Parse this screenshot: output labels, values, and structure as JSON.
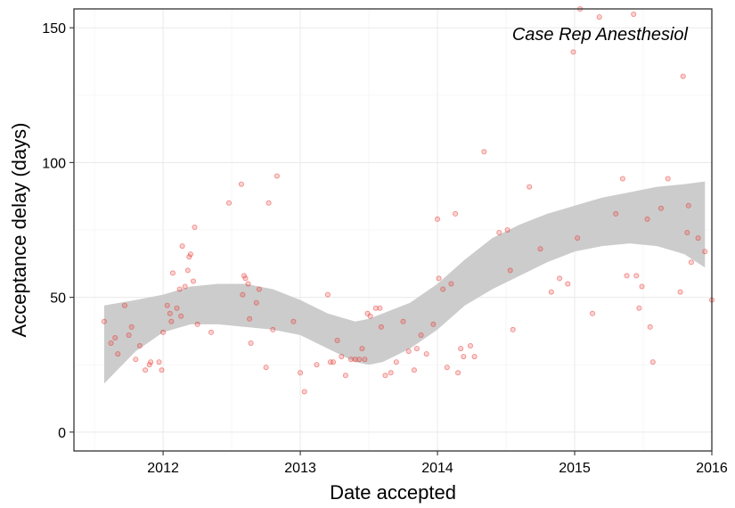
{
  "chart_data": {
    "type": "scatter",
    "title": "",
    "annotation": "Case Rep Anesthesiol",
    "xlabel": "Date accepted",
    "ylabel": "Acceptance delay (days)",
    "x_unit": "year",
    "xlim": [
      2011.35,
      2016.0
    ],
    "ylim": [
      -7,
      157
    ],
    "x_ticks": [
      2012,
      2013,
      2014,
      2015,
      2016
    ],
    "x_tick_labels": [
      "2012",
      "2013",
      "2014",
      "2015",
      "2016"
    ],
    "y_ticks": [
      0,
      50,
      100,
      150
    ],
    "y_tick_labels": [
      "0",
      "50",
      "100",
      "150"
    ],
    "grid": true,
    "point_color": "#e8342d",
    "band_color": "#cccccc",
    "points": [
      [
        2011.57,
        41
      ],
      [
        2011.62,
        33
      ],
      [
        2011.65,
        35
      ],
      [
        2011.67,
        29
      ],
      [
        2011.72,
        47
      ],
      [
        2011.75,
        36
      ],
      [
        2011.77,
        39
      ],
      [
        2011.8,
        27
      ],
      [
        2011.83,
        32
      ],
      [
        2011.87,
        23
      ],
      [
        2011.9,
        25
      ],
      [
        2011.91,
        26
      ],
      [
        2011.97,
        26
      ],
      [
        2011.99,
        23
      ],
      [
        2012.0,
        37
      ],
      [
        2012.03,
        47
      ],
      [
        2012.05,
        44
      ],
      [
        2012.06,
        41
      ],
      [
        2012.07,
        59
      ],
      [
        2012.1,
        46
      ],
      [
        2012.12,
        53
      ],
      [
        2012.13,
        43
      ],
      [
        2012.14,
        69
      ],
      [
        2012.16,
        54
      ],
      [
        2012.18,
        60
      ],
      [
        2012.19,
        65
      ],
      [
        2012.2,
        66
      ],
      [
        2012.22,
        56
      ],
      [
        2012.23,
        76
      ],
      [
        2012.25,
        40
      ],
      [
        2012.35,
        37
      ],
      [
        2012.48,
        85
      ],
      [
        2012.57,
        92
      ],
      [
        2012.58,
        51
      ],
      [
        2012.59,
        58
      ],
      [
        2012.6,
        57
      ],
      [
        2012.62,
        55
      ],
      [
        2012.63,
        42
      ],
      [
        2012.64,
        33
      ],
      [
        2012.68,
        48
      ],
      [
        2012.7,
        53
      ],
      [
        2012.75,
        24
      ],
      [
        2012.77,
        85
      ],
      [
        2012.8,
        38
      ],
      [
        2012.83,
        95
      ],
      [
        2012.95,
        41
      ],
      [
        2013.0,
        22
      ],
      [
        2013.03,
        15
      ],
      [
        2013.12,
        25
      ],
      [
        2013.2,
        51
      ],
      [
        2013.22,
        26
      ],
      [
        2013.24,
        26
      ],
      [
        2013.27,
        34
      ],
      [
        2013.3,
        28
      ],
      [
        2013.33,
        21
      ],
      [
        2013.37,
        27
      ],
      [
        2013.4,
        27
      ],
      [
        2013.43,
        27
      ],
      [
        2013.45,
        31
      ],
      [
        2013.47,
        27
      ],
      [
        2013.49,
        44
      ],
      [
        2013.51,
        43
      ],
      [
        2013.55,
        46
      ],
      [
        2013.58,
        46
      ],
      [
        2013.59,
        39
      ],
      [
        2013.62,
        21
      ],
      [
        2013.66,
        22
      ],
      [
        2013.7,
        26
      ],
      [
        2013.75,
        41
      ],
      [
        2013.79,
        30
      ],
      [
        2013.83,
        23
      ],
      [
        2013.85,
        31
      ],
      [
        2013.88,
        36
      ],
      [
        2013.92,
        29
      ],
      [
        2013.97,
        40
      ],
      [
        2014.0,
        79
      ],
      [
        2014.01,
        57
      ],
      [
        2014.04,
        53
      ],
      [
        2014.07,
        24
      ],
      [
        2014.1,
        55
      ],
      [
        2014.13,
        81
      ],
      [
        2014.15,
        22
      ],
      [
        2014.17,
        31
      ],
      [
        2014.19,
        28
      ],
      [
        2014.24,
        32
      ],
      [
        2014.27,
        28
      ],
      [
        2014.34,
        104
      ],
      [
        2014.45,
        74
      ],
      [
        2014.51,
        75
      ],
      [
        2014.53,
        60
      ],
      [
        2014.55,
        38
      ],
      [
        2014.67,
        91
      ],
      [
        2014.75,
        68
      ],
      [
        2014.83,
        52
      ],
      [
        2014.89,
        57
      ],
      [
        2014.95,
        55
      ],
      [
        2014.99,
        141
      ],
      [
        2015.02,
        72
      ],
      [
        2015.04,
        157
      ],
      [
        2015.13,
        44
      ],
      [
        2015.18,
        154
      ],
      [
        2015.3,
        81
      ],
      [
        2015.35,
        94
      ],
      [
        2015.38,
        58
      ],
      [
        2015.43,
        155
      ],
      [
        2015.45,
        58
      ],
      [
        2015.47,
        46
      ],
      [
        2015.49,
        54
      ],
      [
        2015.53,
        79
      ],
      [
        2015.55,
        39
      ],
      [
        2015.57,
        26
      ],
      [
        2015.63,
        83
      ],
      [
        2015.68,
        94
      ],
      [
        2015.77,
        52
      ],
      [
        2015.79,
        132
      ],
      [
        2015.82,
        74
      ],
      [
        2015.83,
        84
      ],
      [
        2015.85,
        63
      ],
      [
        2015.9,
        72
      ],
      [
        2015.95,
        67
      ],
      [
        2016.0,
        49
      ]
    ],
    "smooth_band": {
      "x": [
        2011.57,
        2011.8,
        2012.0,
        2012.2,
        2012.4,
        2012.6,
        2012.8,
        2013.0,
        2013.2,
        2013.4,
        2013.5,
        2013.6,
        2013.8,
        2014.0,
        2014.2,
        2014.4,
        2014.6,
        2014.8,
        2015.0,
        2015.2,
        2015.4,
        2015.6,
        2015.8,
        2015.95
      ],
      "lower": [
        18,
        30,
        37,
        40,
        40,
        39,
        38,
        36,
        31,
        26,
        25,
        26,
        31,
        38,
        47,
        53,
        58,
        63,
        67,
        69,
        70,
        69,
        66,
        61
      ],
      "upper": [
        47,
        49,
        51,
        54,
        55,
        55,
        53,
        49,
        44,
        41,
        42,
        44,
        48,
        55,
        64,
        72,
        77,
        81,
        84,
        87,
        89,
        91,
        92,
        93
      ]
    }
  }
}
